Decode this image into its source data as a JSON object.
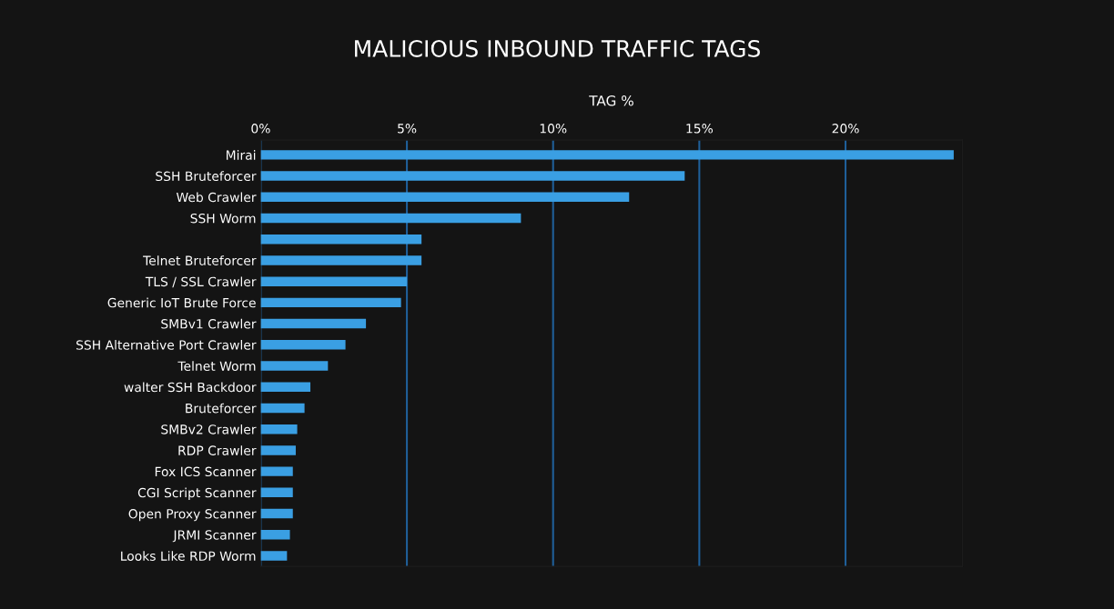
{
  "chart_data": {
    "type": "bar",
    "orientation": "horizontal",
    "title": "MALICIOUS INBOUND TRAFFIC TAGS",
    "xlabel": "TAG %",
    "categories": [
      "Mirai",
      "SSH Bruteforcer",
      "Web Crawler",
      "SSH Worm",
      null,
      "Telnet Bruteforcer",
      "TLS / SSL Crawler",
      "Generic IoT Brute Force",
      "SMBv1 Crawler",
      "SSH Alternative Port Crawler",
      "Telnet Worm",
      "walter SSH Backdoor",
      "Bruteforcer",
      "SMBv2 Crawler",
      "RDP Crawler",
      "Fox ICS Scanner",
      "CGI Script Scanner",
      "Open Proxy Scanner",
      "JRMI Scanner",
      "Looks Like RDP Worm"
    ],
    "values": [
      23.7,
      14.5,
      12.6,
      8.9,
      5.5,
      5.5,
      5.0,
      4.8,
      3.6,
      2.9,
      2.3,
      1.7,
      1.5,
      1.25,
      1.2,
      1.1,
      1.1,
      1.1,
      1.0,
      0.9
    ],
    "color": "#3a9fe3",
    "xlim": [
      0,
      24
    ],
    "xticks": [
      {
        "value": 0,
        "label": "0%"
      },
      {
        "value": 5,
        "label": "5%"
      },
      {
        "value": 10,
        "label": "10%"
      },
      {
        "value": 15,
        "label": "15%"
      },
      {
        "value": 20,
        "label": "20%"
      }
    ],
    "grid": "x",
    "legend": false
  }
}
